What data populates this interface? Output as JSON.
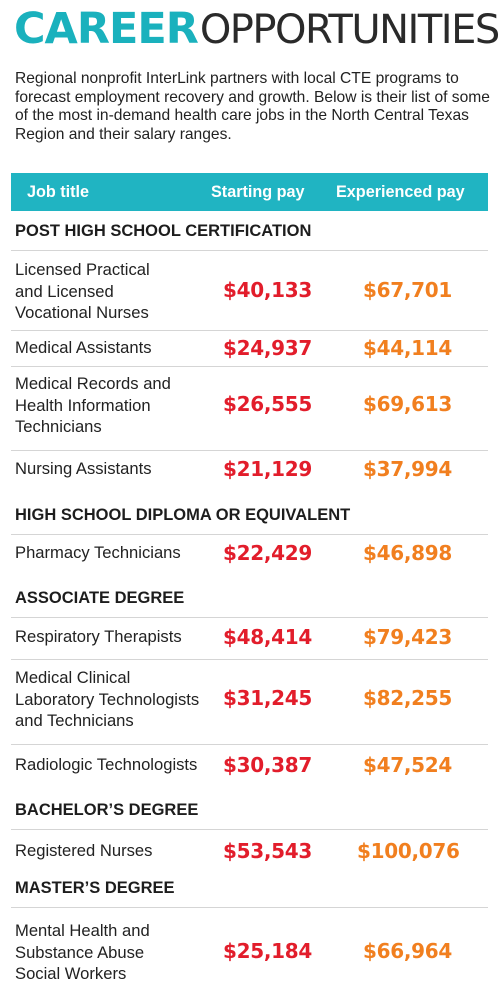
{
  "title": {
    "part1": "CAREER",
    "part2": "OPPORTUNITIES"
  },
  "intro": "Regional nonprofit InterLink partners with local CTE programs to forecast employment recovery and growth. Below is their list of some of the most in-demand health care jobs in the North Central Texas Region and their salary ranges.",
  "table": {
    "headers": {
      "job": "Job title",
      "start": "Starting pay",
      "exp": "Experienced pay"
    },
    "sections": [
      {
        "name": "POST HIGH SCHOOL CERTIFICATION",
        "rows": [
          {
            "job": "Licensed Practical\nand Licensed\nVocational Nurses",
            "start": "$40,133",
            "exp": "$67,701"
          },
          {
            "job": "Medical Assistants",
            "start": "$24,937",
            "exp": "$44,114"
          },
          {
            "job": "Medical Records and\nHealth Information\nTechnicians",
            "start": "$26,555",
            "exp": "$69,613"
          },
          {
            "job": "Nursing Assistants",
            "start": "$21,129",
            "exp": "$37,994"
          }
        ]
      },
      {
        "name": "HIGH SCHOOL DIPLOMA OR EQUIVALENT",
        "rows": [
          {
            "job": "Pharmacy Technicians",
            "start": "$22,429",
            "exp": "$46,898"
          }
        ]
      },
      {
        "name": "ASSOCIATE DEGREE",
        "rows": [
          {
            "job": "Respiratory Therapists",
            "start": "$48,414",
            "exp": "$79,423"
          },
          {
            "job": "Medical Clinical\nLaboratory Technologists\nand Technicians",
            "start": "$31,245",
            "exp": "$82,255"
          },
          {
            "job": "Radiologic Technologists",
            "start": "$30,387",
            "exp": "$47,524"
          }
        ]
      },
      {
        "name": "BACHELOR’S DEGREE",
        "rows": [
          {
            "job": "Registered Nurses",
            "start": "$53,543",
            "exp": "$100,076"
          }
        ]
      },
      {
        "name": "MASTER’S DEGREE",
        "rows": [
          {
            "job": "Mental Health and\nSubstance Abuse\nSocial Workers",
            "start": "$25,184",
            "exp": "$66,964"
          }
        ]
      }
    ]
  },
  "colors": {
    "accent": "#20b4c2",
    "starting": "#e21d2b",
    "experienced": "#f17f1f"
  }
}
